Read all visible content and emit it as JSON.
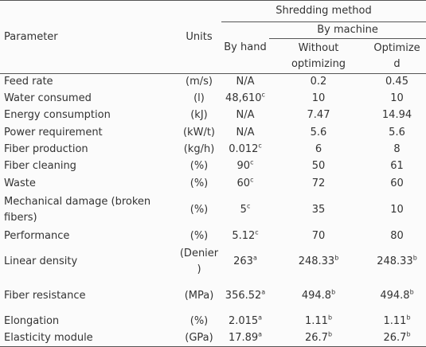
{
  "header": {
    "group": "Shredding method",
    "subgroup": "By machine",
    "columns": [
      "Parameter",
      "Units",
      "By hand",
      "Without optimizing",
      "Optimize d"
    ]
  },
  "table": {
    "rows": [
      [
        "Feed rate",
        "(m/s)",
        "N/A",
        "0.2",
        "0.45"
      ],
      [
        "Water consumed",
        "(l)",
        {
          "text": "48,610",
          "sup": "c"
        },
        "10",
        "10"
      ],
      [
        "Energy consumption",
        "(kJ)",
        "N/A",
        "7.47",
        "14.94"
      ],
      [
        "Power requirement",
        "(kW/t)",
        "N/A",
        "5.6",
        "5.6"
      ],
      [
        "Fiber production",
        "(kg/h)",
        {
          "text": "0.012",
          "sup": "c"
        },
        "6",
        "8"
      ],
      [
        "Fiber cleaning",
        "(%)",
        {
          "text": "90",
          "sup": "c"
        },
        "50",
        "61"
      ],
      [
        "Waste",
        "(%)",
        {
          "text": "60",
          "sup": "c"
        },
        "72",
        "60"
      ],
      [
        "Mechanical damage (broken fibers)",
        "(%)",
        {
          "text": "5",
          "sup": "c"
        },
        "35",
        "10"
      ],
      [
        "Performance",
        "(%)",
        {
          "text": "5.12",
          "sup": "c"
        },
        "70",
        "80"
      ],
      [
        "Linear density",
        "(Denier)",
        {
          "text": "263",
          "sup": "a"
        },
        {
          "text": "248.33",
          "sup": "b"
        },
        {
          "text": "248.33",
          "sup": "b"
        }
      ],
      [
        "Fiber resistance",
        "(MPa)",
        {
          "text": "356.52",
          "sup": "a"
        },
        {
          "text": "494.8",
          "sup": "b"
        },
        {
          "text": "494.8",
          "sup": "b"
        }
      ],
      [
        "Elongation",
        "(%)",
        {
          "text": "2.015",
          "sup": "a"
        },
        {
          "text": "1.11",
          "sup": "b"
        },
        {
          "text": "1.11",
          "sup": "b"
        }
      ],
      [
        "Elasticity module",
        "(GPa)",
        {
          "text": "17.89",
          "sup": "a"
        },
        {
          "text": "26.7",
          "sup": "b"
        },
        {
          "text": "26.7",
          "sup": "b"
        }
      ]
    ]
  }
}
